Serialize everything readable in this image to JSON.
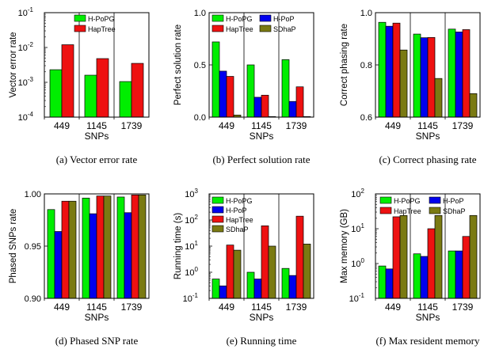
{
  "colors": {
    "H-PoPG": "#00ee00",
    "HapTree": "#ee1111",
    "H-PoP": "#0000ee",
    "SDhaP": "#7a7a12"
  },
  "chart_data": [
    {
      "type": "bar",
      "ylabel": "Vector  error rate",
      "xlabel": "SNPs",
      "caption": "(a) Vector error rate",
      "yscale": "log",
      "ylim": [
        0.0001,
        0.1
      ],
      "categories": [
        "449",
        "1145",
        "1739"
      ],
      "legend": "top-right",
      "series": [
        {
          "name": "H-PoPG",
          "values": [
            0.0023,
            0.0016,
            0.00105
          ]
        },
        {
          "name": "HapTree",
          "values": [
            0.012,
            0.0048,
            0.0035
          ]
        }
      ]
    },
    {
      "type": "bar",
      "ylabel": "Perfect solution rate",
      "xlabel": "SNPs",
      "caption": "(b) Perfect solution rate",
      "yscale": "linear",
      "ylim": [
        0,
        1.0
      ],
      "categories": [
        "449",
        "1145",
        "1739"
      ],
      "legend": "top-right",
      "series": [
        {
          "name": "H-PoPG",
          "values": [
            0.72,
            0.5,
            0.55
          ]
        },
        {
          "name": "H-PoP",
          "values": [
            0.44,
            0.19,
            0.15
          ]
        },
        {
          "name": "HapTree",
          "values": [
            0.39,
            0.21,
            0.29
          ]
        },
        {
          "name": "SDhaP",
          "values": [
            0.02,
            0.005,
            0.005
          ]
        }
      ]
    },
    {
      "type": "bar",
      "ylabel": "Correct phasing rate",
      "xlabel": "SNPs",
      "caption": "(c) Correct phasing rate",
      "yscale": "linear",
      "ylim": [
        0.6,
        1.0
      ],
      "categories": [
        "449",
        "1145",
        "1739"
      ],
      "series": [
        {
          "name": "H-PoPG",
          "values": [
            0.963,
            0.918,
            0.937
          ]
        },
        {
          "name": "H-PoP",
          "values": [
            0.948,
            0.904,
            0.926
          ]
        },
        {
          "name": "HapTree",
          "values": [
            0.96,
            0.905,
            0.935
          ]
        },
        {
          "name": "SDhaP",
          "values": [
            0.857,
            0.748,
            0.69
          ]
        }
      ]
    },
    {
      "type": "bar",
      "ylabel": "Phased SNPs rate",
      "xlabel": "SNPs",
      "caption": "(d) Phased SNP rate",
      "yscale": "linear",
      "ylim": [
        0.9,
        1.0
      ],
      "categories": [
        "449",
        "1145",
        "1739"
      ],
      "series": [
        {
          "name": "H-PoPG",
          "values": [
            0.985,
            0.996,
            0.997
          ]
        },
        {
          "name": "H-PoP",
          "values": [
            0.964,
            0.981,
            0.982
          ]
        },
        {
          "name": "HapTree",
          "values": [
            0.993,
            0.998,
            0.999
          ]
        },
        {
          "name": "SDhaP",
          "values": [
            0.993,
            0.998,
            0.999
          ]
        }
      ]
    },
    {
      "type": "bar",
      "ylabel": "Running time (s)",
      "xlabel": "SNPs",
      "caption": "(e) Running time",
      "yscale": "log",
      "ylim": [
        0.1,
        1000
      ],
      "categories": [
        "449",
        "1145",
        "1739"
      ],
      "legend": "top-left",
      "series": [
        {
          "name": "H-PoPG",
          "values": [
            0.55,
            1.0,
            1.4
          ]
        },
        {
          "name": "H-PoP",
          "values": [
            0.3,
            0.55,
            0.75
          ]
        },
        {
          "name": "HapTree",
          "values": [
            11,
            60,
            140
          ]
        },
        {
          "name": "SDhaP",
          "values": [
            7,
            10,
            12
          ]
        }
      ]
    },
    {
      "type": "bar",
      "ylabel": "Max memory (GB)",
      "xlabel": "SNPs",
      "caption": "(f) Max resident memory",
      "yscale": "log",
      "ylim": [
        0.1,
        100
      ],
      "categories": [
        "449",
        "1145",
        "1739"
      ],
      "legend": "top",
      "series": [
        {
          "name": "H-PoPG",
          "values": [
            0.85,
            1.9,
            2.3
          ]
        },
        {
          "name": "H-PoP",
          "values": [
            0.7,
            1.6,
            2.3
          ]
        },
        {
          "name": "HapTree",
          "values": [
            22,
            10,
            6
          ]
        },
        {
          "name": "SDhaP",
          "values": [
            24,
            24,
            24
          ]
        }
      ]
    }
  ]
}
